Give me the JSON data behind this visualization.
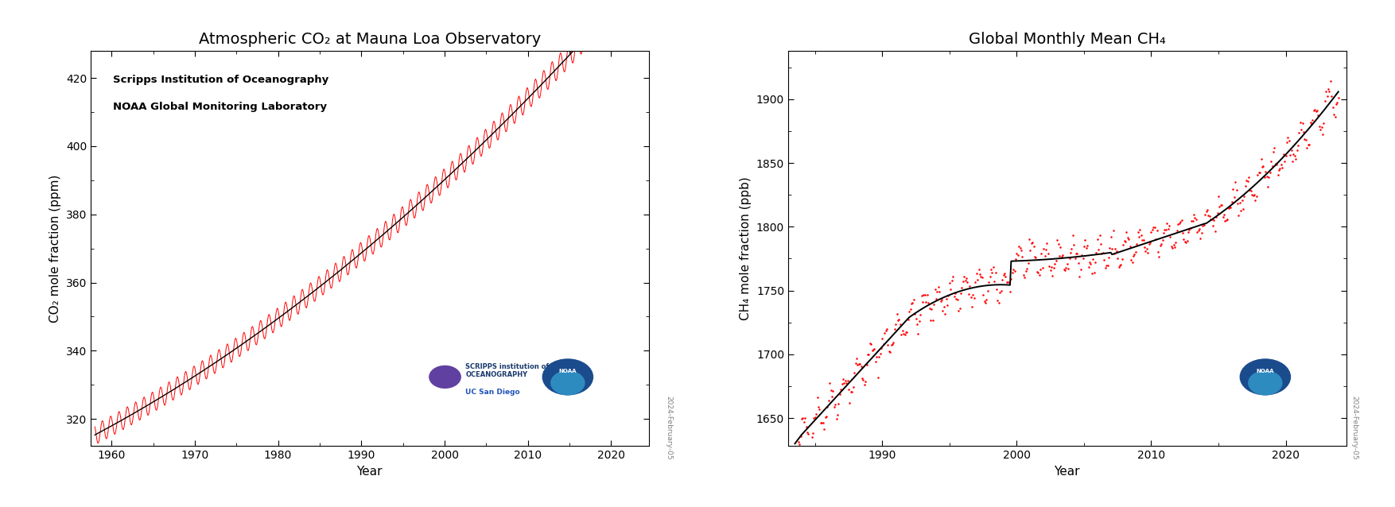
{
  "co2_title": "Atmospheric CO₂ at Mauna Loa Observatory",
  "ch4_title": "Global Monthly Mean CH₄",
  "co2_ylabel": "CO₂ mole fraction (ppm)",
  "ch4_ylabel": "CH₄ mole fraction (ppb)",
  "xlabel": "Year",
  "co2_annotation_line1": "Scripps Institution of Oceanography",
  "co2_annotation_line2": "NOAA Global Monitoring Laboratory",
  "date_label": "2024-February-05",
  "co2_xlim": [
    1957.5,
    2024.5
  ],
  "co2_ylim": [
    312,
    428
  ],
  "ch4_xlim": [
    1983.0,
    2024.5
  ],
  "ch4_ylim": [
    1628,
    1938
  ],
  "co2_xticks": [
    1960,
    1970,
    1980,
    1990,
    2000,
    2010,
    2020
  ],
  "ch4_xticks": [
    1990,
    2000,
    2010,
    2020
  ],
  "co2_yticks": [
    320,
    340,
    360,
    380,
    400,
    420
  ],
  "ch4_yticks": [
    1650,
    1700,
    1750,
    1800,
    1850,
    1900
  ],
  "line_color_raw": "#FF0000",
  "line_color_smooth": "#000000",
  "background_color": "#FFFFFF",
  "title_fontsize": 14,
  "label_fontsize": 11,
  "tick_fontsize": 10,
  "annotation_fontsize": 9.5,
  "noaa_color": "#1A4B8C",
  "noaa_light": "#2E8BC0",
  "scripps_color": "#1A3A6B"
}
